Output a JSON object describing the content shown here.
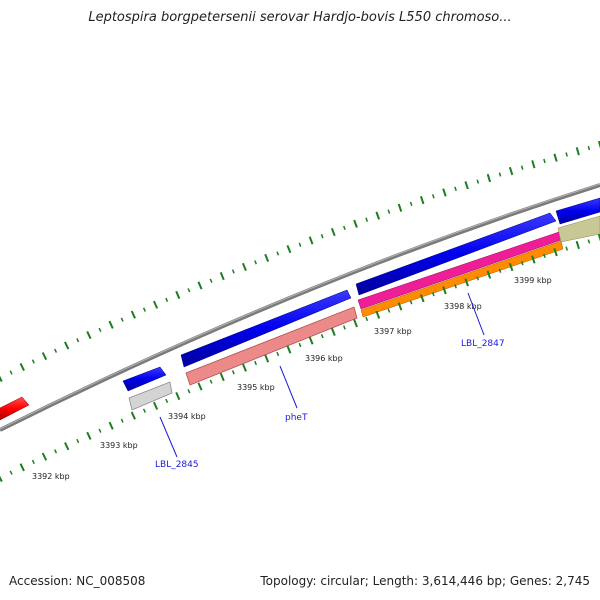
{
  "title": "Leptospira borgpetersenii serovar Hardjo-bovis L550 chromoso...",
  "footer": {
    "accession": "Accession: NC_008508",
    "summary": "Topology: circular; Length: 3,614,446 bp; Genes: 2,745"
  },
  "scale_labels": [
    {
      "text": "3392 kbp",
      "kbp": 3392
    },
    {
      "text": "3393 kbp",
      "kbp": 3393
    },
    {
      "text": "3394 kbp",
      "kbp": 3394
    },
    {
      "text": "3395 kbp",
      "kbp": 3395
    },
    {
      "text": "3396 kbp",
      "kbp": 3396
    },
    {
      "text": "3397 kbp",
      "kbp": 3397
    },
    {
      "text": "3398 kbp",
      "kbp": 3398
    },
    {
      "text": "3399 kbp",
      "kbp": 3399
    }
  ],
  "gene_labels": [
    {
      "text": "LBL_2845"
    },
    {
      "text": "pheT"
    },
    {
      "text": "LBL_2847"
    }
  ],
  "colors": {
    "backbone": "#888888",
    "tick": "#1e7d1e",
    "cds": "#0000ee",
    "trna": "#ff2222",
    "gene_grey": "#cccccc",
    "gene_pink": "#ee8888",
    "gene_magenta": "#ee1e96",
    "gene_orange": "#ff8c00",
    "gene_olive": "#c8c896",
    "label": "#1a1adf"
  }
}
